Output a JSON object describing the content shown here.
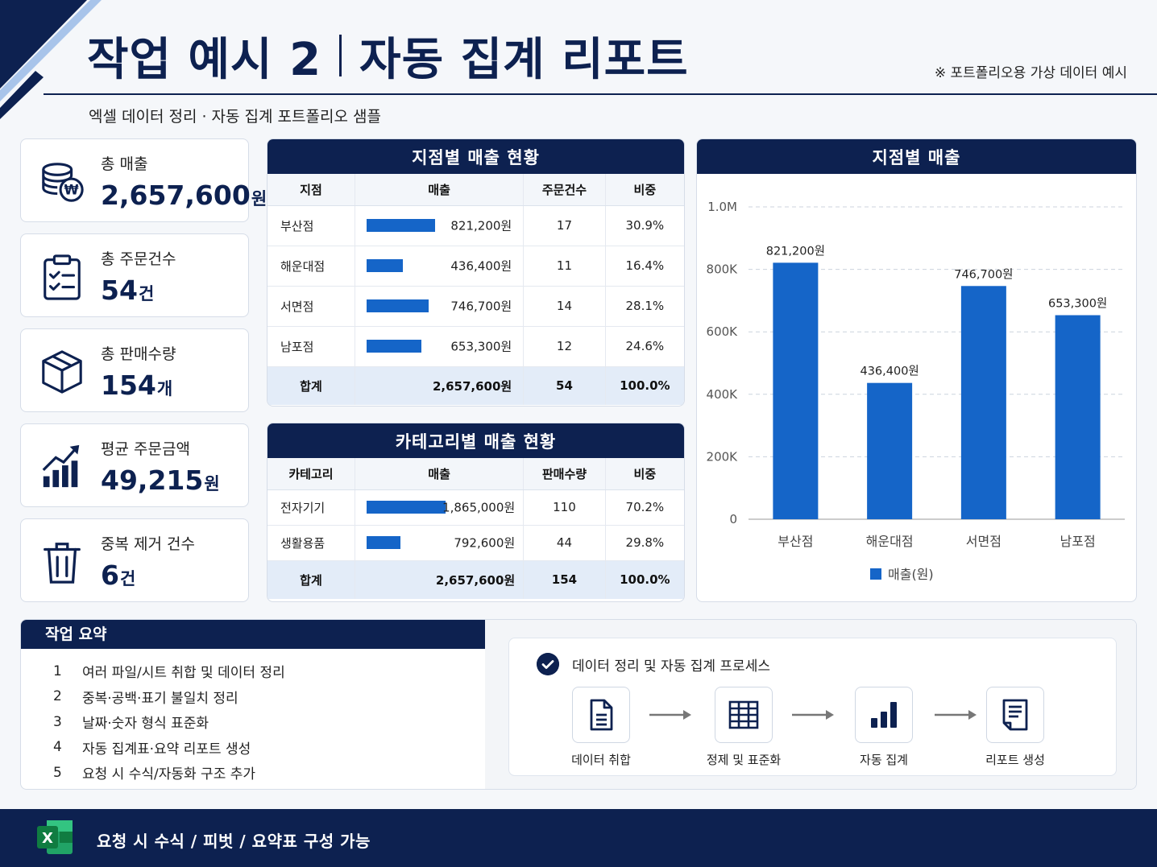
{
  "header": {
    "title": "작업 예시 2",
    "title_sub": "자동 집계 리포트",
    "note": "※ 포트폴리오용 가상 데이터 예시",
    "subtitle": "엑셀 데이터 정리 · 자동 집계 포트폴리오 샘플"
  },
  "kpis": [
    {
      "label": "총 매출",
      "value": "2,657,600",
      "unit": "원",
      "icon": "coins-won-icon"
    },
    {
      "label": "총 주문건수",
      "value": "54",
      "unit": "건",
      "icon": "clipboard-check-icon"
    },
    {
      "label": "총 판매수량",
      "value": "154",
      "unit": "개",
      "icon": "box-icon"
    },
    {
      "label": "평균 주문금액",
      "value": "49,215",
      "unit": "원",
      "icon": "growth-chart-icon"
    },
    {
      "label": "중복 제거 건수",
      "value": "6",
      "unit": "건",
      "icon": "trash-icon"
    }
  ],
  "branch_table": {
    "title": "지점별 매출 현황",
    "headers": [
      "지점",
      "매출",
      "주문건수",
      "비중"
    ],
    "rows": [
      {
        "name": "부산점",
        "sales": "821,200원",
        "orders": "17",
        "share": "30.9%",
        "ratio": 0.309
      },
      {
        "name": "해운대점",
        "sales": "436,400원",
        "orders": "11",
        "share": "16.4%",
        "ratio": 0.164
      },
      {
        "name": "서면점",
        "sales": "746,700원",
        "orders": "14",
        "share": "28.1%",
        "ratio": 0.281
      },
      {
        "name": "남포점",
        "sales": "653,300원",
        "orders": "12",
        "share": "24.6%",
        "ratio": 0.246
      }
    ],
    "total": {
      "name": "합계",
      "sales": "2,657,600원",
      "orders": "54",
      "share": "100.0%"
    }
  },
  "category_table": {
    "title": "카테고리별 매출 현황",
    "headers": [
      "카테고리",
      "매출",
      "판매수량",
      "비중"
    ],
    "rows": [
      {
        "name": "전자기기",
        "sales": "1,865,000원",
        "qty": "110",
        "share": "70.2%",
        "ratio": 0.702
      },
      {
        "name": "생활용품",
        "sales": "792,600원",
        "qty": "44",
        "share": "29.8%",
        "ratio": 0.298
      }
    ],
    "total": {
      "name": "합계",
      "sales": "2,657,600원",
      "qty": "154",
      "share": "100.0%"
    }
  },
  "chart_data": {
    "type": "bar",
    "title": "지점별 매출",
    "categories": [
      "부산점",
      "해운대점",
      "서면점",
      "남포점"
    ],
    "series": [
      {
        "name": "매출(원)",
        "values": [
          821200,
          436400,
          746700,
          653300
        ]
      }
    ],
    "data_labels": [
      "821,200원",
      "436,400원",
      "746,700원",
      "653,300원"
    ],
    "yticks": [
      "0",
      "200K",
      "400K",
      "600K",
      "800K",
      "1.0M"
    ],
    "ylim": [
      0,
      1000000
    ],
    "grid": true,
    "legend": "bottom",
    "color": "#1565c8"
  },
  "summary": {
    "title": "작업 요약",
    "steps": [
      {
        "num": "1",
        "text": "여러 파일/시트 취합 및 데이터 정리"
      },
      {
        "num": "2",
        "text": "중복·공백·표기 불일치 정리"
      },
      {
        "num": "3",
        "text": "날짜·숫자 형식 표준화"
      },
      {
        "num": "4",
        "text": "자동 집계표·요약 리포트 생성"
      },
      {
        "num": "5",
        "text": "요청 시 수식/자동화 구조 추가"
      }
    ]
  },
  "process": {
    "title": "데이터 정리 및 자동 집계 프로세스",
    "steps": [
      {
        "label": "데이터 취합",
        "icon": "document-icon"
      },
      {
        "label": "정제 및 표준화",
        "icon": "table-grid-icon"
      },
      {
        "label": "자동 집계",
        "icon": "bar-chart-icon"
      },
      {
        "label": "리포트 생성",
        "icon": "report-icon"
      }
    ]
  },
  "footer": {
    "text": "요청 시 수식 / 피벗 / 요약표 구성 가능",
    "icon_letter": "X"
  },
  "colors": {
    "navy": "#0d2150",
    "accent": "#1565c8",
    "light_blue": "#a8c4ea"
  }
}
